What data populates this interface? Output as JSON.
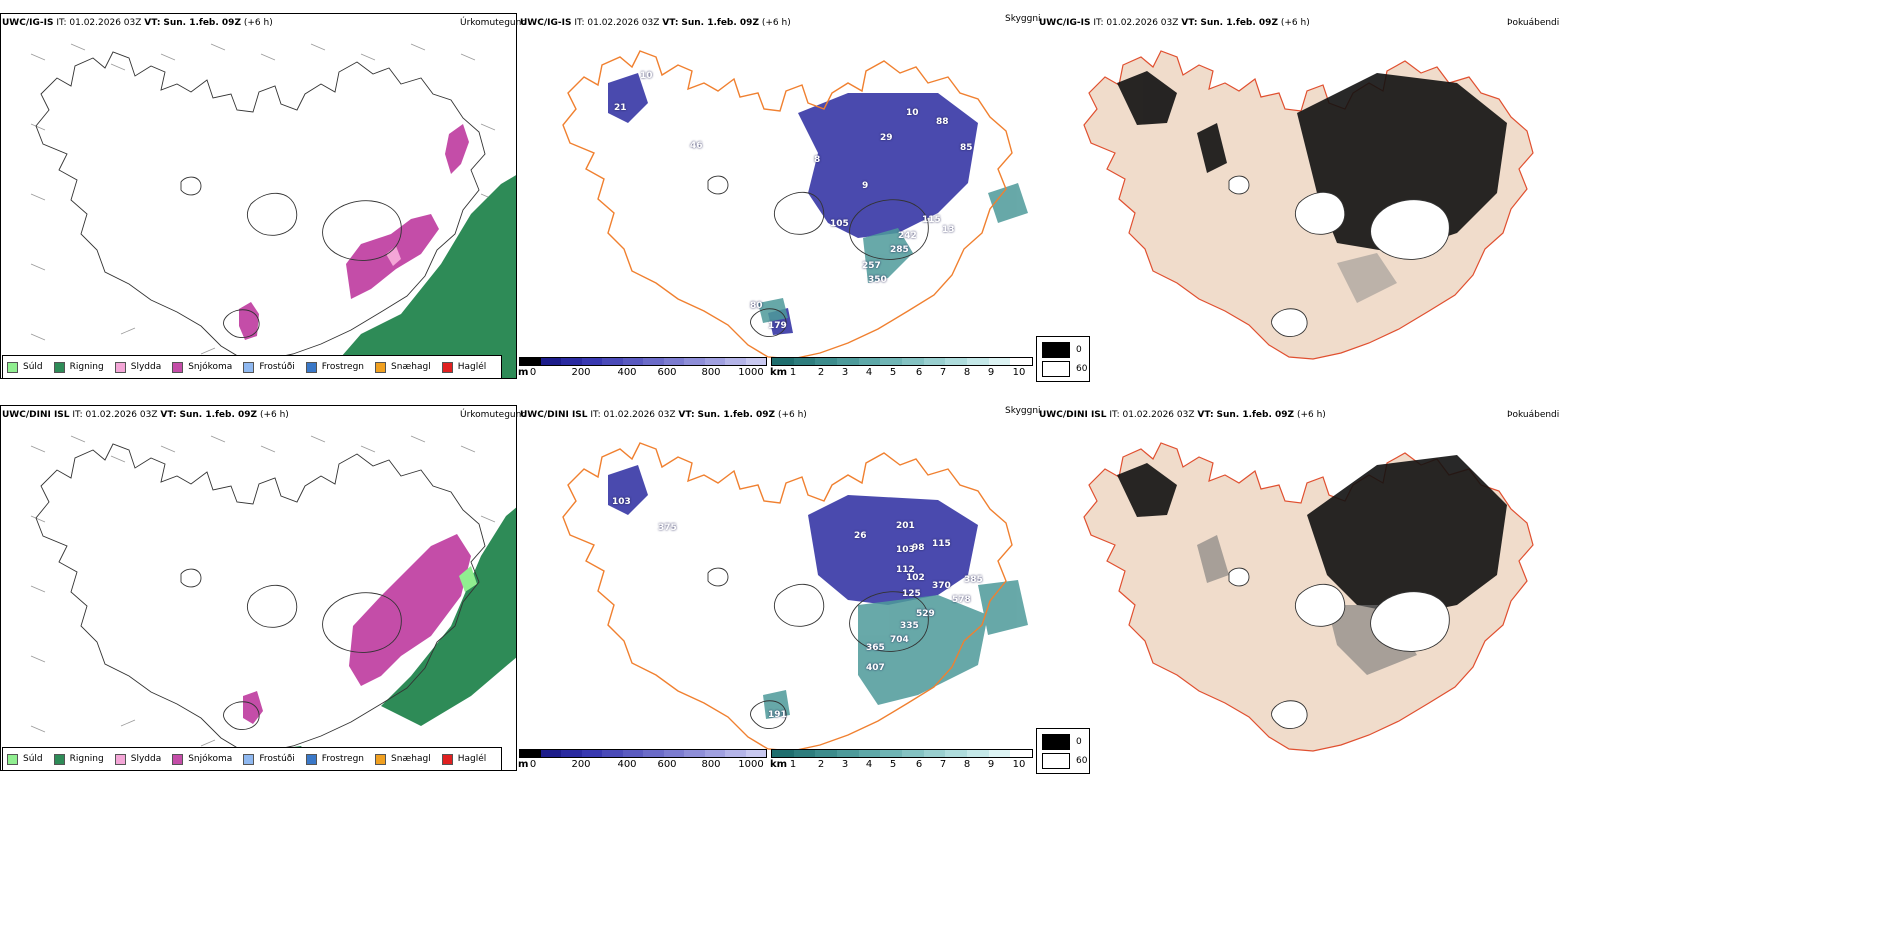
{
  "colors": {
    "sudd": "#90ee90",
    "rigning": "#2e8b57",
    "slydda": "#f4a6d7",
    "snjokoma": "#c44da8",
    "frostudi": "#8fb8f0",
    "frostregn": "#3a78c8",
    "snaehagl": "#f0a020",
    "haglel": "#e02020",
    "land": "#f0dccb",
    "roads": "#f08030",
    "ocean_bg": "#ffffff"
  },
  "precip_legend": {
    "items": [
      "Súld",
      "Rigning",
      "Slydda",
      "Snjókoma",
      "Frostúði",
      "Frostregn",
      "Snæhagl",
      "Haglél"
    ],
    "colors": [
      "#90ee90",
      "#2e8b57",
      "#f4a6d7",
      "#c44da8",
      "#8fb8f0",
      "#3a78c8",
      "#f0a020",
      "#e02020"
    ]
  },
  "rows": [
    {
      "model": "UWC/IG-IS",
      "it_label": "IT:",
      "it_time": "01.02.2026 03Z",
      "vt_label": "VT:",
      "vt_time": "Sun. 1.feb. 09Z",
      "lead": "(+6 h)",
      "panels": [
        "Úrkomutegund",
        "Skyggni",
        "Þokuábendi"
      ],
      "cloud_labels": [
        "21",
        "10",
        "46",
        "10",
        "8",
        "29",
        "88",
        "85",
        "9",
        "115",
        "105",
        "242",
        "285",
        "257",
        "350",
        "13",
        "80",
        "179"
      ]
    },
    {
      "model": "UWC/DINI ISL",
      "it_label": "IT:",
      "it_time": "01.02.2026 03Z",
      "vt_label": "VT:",
      "vt_time": "Sun. 1.feb. 09Z",
      "lead": "(+6 h)",
      "panels": [
        "Úrkomutegund",
        "Skyggni",
        "Þokuábendi"
      ],
      "cloud_labels": [
        "103",
        "375",
        "26",
        "201",
        "98",
        "115",
        "103",
        "112",
        "102",
        "370",
        "385",
        "125",
        "578",
        "529",
        "335",
        "704",
        "365",
        "407",
        "191"
      ]
    }
  ],
  "ceiling_scale": {
    "unit": "m",
    "ticks": [
      "0",
      "200",
      "400",
      "600",
      "800",
      "1000"
    ],
    "colors": [
      "#000000",
      "#1c1c8a",
      "#2a2aa0",
      "#3838b0",
      "#4a4ab8",
      "#5a5ac0",
      "#6b6bc8",
      "#7c7cd0",
      "#8e8ed8",
      "#a0a0e0",
      "#b4b4e8",
      "#c8c8f0"
    ]
  },
  "visibility_scale": {
    "unit": "km",
    "ticks": [
      "1",
      "2",
      "3",
      "4",
      "5",
      "6",
      "7",
      "8",
      "9",
      "10"
    ],
    "colors": [
      "#1f6e6e",
      "#2e7d7d",
      "#3d8c8c",
      "#4d9a9a",
      "#5ea8a8",
      "#70b5b5",
      "#84c2c2",
      "#99cfcf",
      "#aedcdc",
      "#c4e8e8",
      "#dcf3f3",
      "#ffffff"
    ]
  },
  "fog_legend": {
    "high": "0",
    "low": "60"
  }
}
